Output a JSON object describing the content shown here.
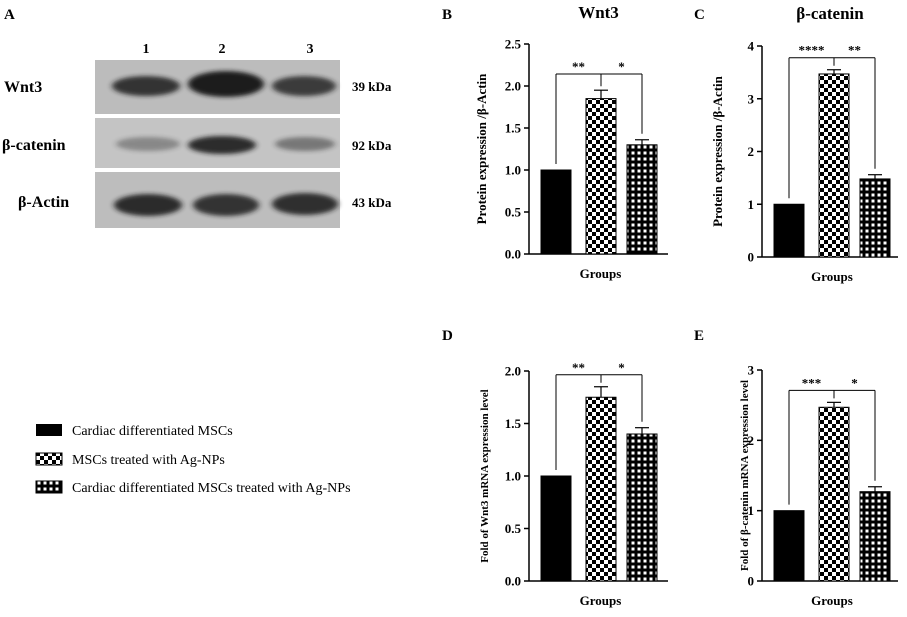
{
  "blot": {
    "panel_label": "A",
    "lanes": [
      "1",
      "2",
      "3"
    ],
    "rows": [
      {
        "name": "Wnt3",
        "kda": "39 kDa",
        "intensity": [
          0.85,
          1.0,
          0.8
        ]
      },
      {
        "name": "β-catenin",
        "kda": "92 kDa",
        "intensity": [
          0.35,
          0.9,
          0.45
        ]
      },
      {
        "name": "β-Actin",
        "kda": "43 kDa",
        "intensity": [
          0.9,
          0.85,
          0.88
        ]
      }
    ]
  },
  "legend": {
    "items": [
      {
        "label": "Cardiac differentiated MSCs",
        "pattern": "solid"
      },
      {
        "label": "MSCs treated with Ag-NPs",
        "pattern": "checker"
      },
      {
        "label": "Cardiac differentiated MSCs treated with Ag-NPs",
        "pattern": "grid"
      }
    ]
  },
  "chart_data": [
    {
      "panel": "B",
      "type": "bar",
      "title": "Wnt3",
      "xlabel": "Groups",
      "ylabel": "Protein expression /β-Actin",
      "ylim": [
        0,
        2.5
      ],
      "yticks": [
        "0.0",
        "0.5",
        "1.0",
        "1.5",
        "2.0",
        "2.5"
      ],
      "values": [
        1.0,
        1.85,
        1.3
      ],
      "errors": [
        0,
        0.1,
        0.06
      ],
      "significance": [
        "**",
        "*"
      ]
    },
    {
      "panel": "C",
      "type": "bar",
      "title": "β-catenin",
      "xlabel": "Groups",
      "ylabel": "Protein expression /β-Actin",
      "ylim": [
        0,
        4
      ],
      "yticks": [
        "0",
        "1",
        "2",
        "3",
        "4"
      ],
      "values": [
        1.0,
        3.47,
        1.48
      ],
      "errors": [
        0,
        0.08,
        0.08
      ],
      "significance": [
        "****",
        "**"
      ]
    },
    {
      "panel": "D",
      "type": "bar",
      "title": "",
      "xlabel": "Groups",
      "ylabel": "Fold of Wnt3 mRNA expression level",
      "ylim": [
        0,
        2.0
      ],
      "yticks": [
        "0.0",
        "0.5",
        "1.0",
        "1.5",
        "2.0"
      ],
      "values": [
        1.0,
        1.75,
        1.4
      ],
      "errors": [
        0,
        0.1,
        0.06
      ],
      "significance": [
        "**",
        "*"
      ]
    },
    {
      "panel": "E",
      "type": "bar",
      "title": "",
      "xlabel": "Groups",
      "ylabel": "Fold of β-catenin mRNA expression level",
      "ylim": [
        0,
        3
      ],
      "yticks": [
        "0",
        "1",
        "2",
        "3"
      ],
      "values": [
        1.0,
        2.47,
        1.27
      ],
      "errors": [
        0,
        0.07,
        0.07
      ],
      "significance": [
        "***",
        "*"
      ]
    }
  ]
}
